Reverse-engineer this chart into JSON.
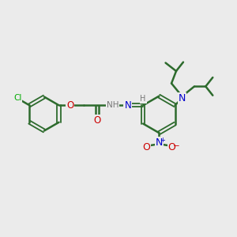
{
  "bg": "#ebebeb",
  "bond_color": "#2d6b2d",
  "cl_color": "#00aa00",
  "o_color": "#cc0000",
  "n_color": "#0000cc",
  "gray_color": "#777777",
  "figsize": [
    3.0,
    3.0
  ],
  "dpi": 100,
  "xlim": [
    0,
    10
  ],
  "ylim": [
    0,
    10
  ]
}
